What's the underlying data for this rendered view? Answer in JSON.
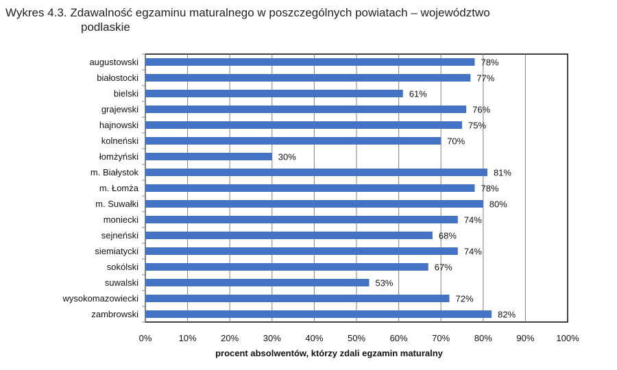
{
  "title_line1": "Wykres 4.3. Zdawalność egzaminu maturalnego w poszczególnych powiatach – województwo",
  "title_line2": "podlaskie",
  "chart_data": {
    "type": "bar",
    "orientation": "horizontal",
    "categories": [
      "augustowski",
      "białostocki",
      "bielski",
      "grajewski",
      "hajnowski",
      "kolneński",
      "łomżyński",
      "m. Białystok",
      "m. Łomża",
      "m. Suwałki",
      "moniecki",
      "sejneński",
      "siemiatycki",
      "sokólski",
      "suwalski",
      "wysokomazowiecki",
      "zambrowski"
    ],
    "values": [
      78,
      77,
      61,
      76,
      75,
      70,
      30,
      81,
      78,
      80,
      74,
      68,
      74,
      67,
      53,
      72,
      82
    ],
    "value_labels": [
      "78%",
      "77%",
      "61%",
      "76%",
      "75%",
      "70%",
      "30%",
      "81%",
      "78%",
      "80%",
      "74%",
      "68%",
      "74%",
      "67%",
      "53%",
      "72%",
      "82%"
    ],
    "xticks": [
      "0%",
      "10%",
      "20%",
      "30%",
      "40%",
      "50%",
      "60%",
      "70%",
      "80%",
      "90%",
      "100%"
    ],
    "xlim": [
      0,
      100
    ],
    "xlabel": "procent absolwentów, którzy zdali egzamin maturalny",
    "grid": "vertical",
    "bar_color": "#4472C4"
  }
}
